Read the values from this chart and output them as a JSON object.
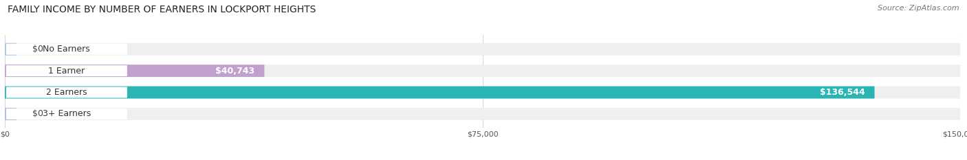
{
  "title": "FAMILY INCOME BY NUMBER OF EARNERS IN LOCKPORT HEIGHTS",
  "source": "Source: ZipAtlas.com",
  "categories": [
    "No Earners",
    "1 Earner",
    "2 Earners",
    "3+ Earners"
  ],
  "values": [
    0,
    40743,
    136544,
    0
  ],
  "max_value": 150000,
  "bar_colors": [
    "#a8c0e8",
    "#c0a0cc",
    "#2ab5b5",
    "#b0b8e8"
  ],
  "bar_bg_color": "#efefef",
  "label_bg_color": "#ffffff",
  "tick_labels": [
    "$0",
    "$75,000",
    "$150,000"
  ],
  "tick_values": [
    0,
    75000,
    150000
  ],
  "value_labels": [
    "$0",
    "$40,743",
    "$136,544",
    "$0"
  ],
  "title_fontsize": 10,
  "source_fontsize": 8,
  "bar_label_fontsize": 9,
  "value_label_fontsize": 9,
  "background_color": "#ffffff",
  "grid_color": "#d8d8d8"
}
